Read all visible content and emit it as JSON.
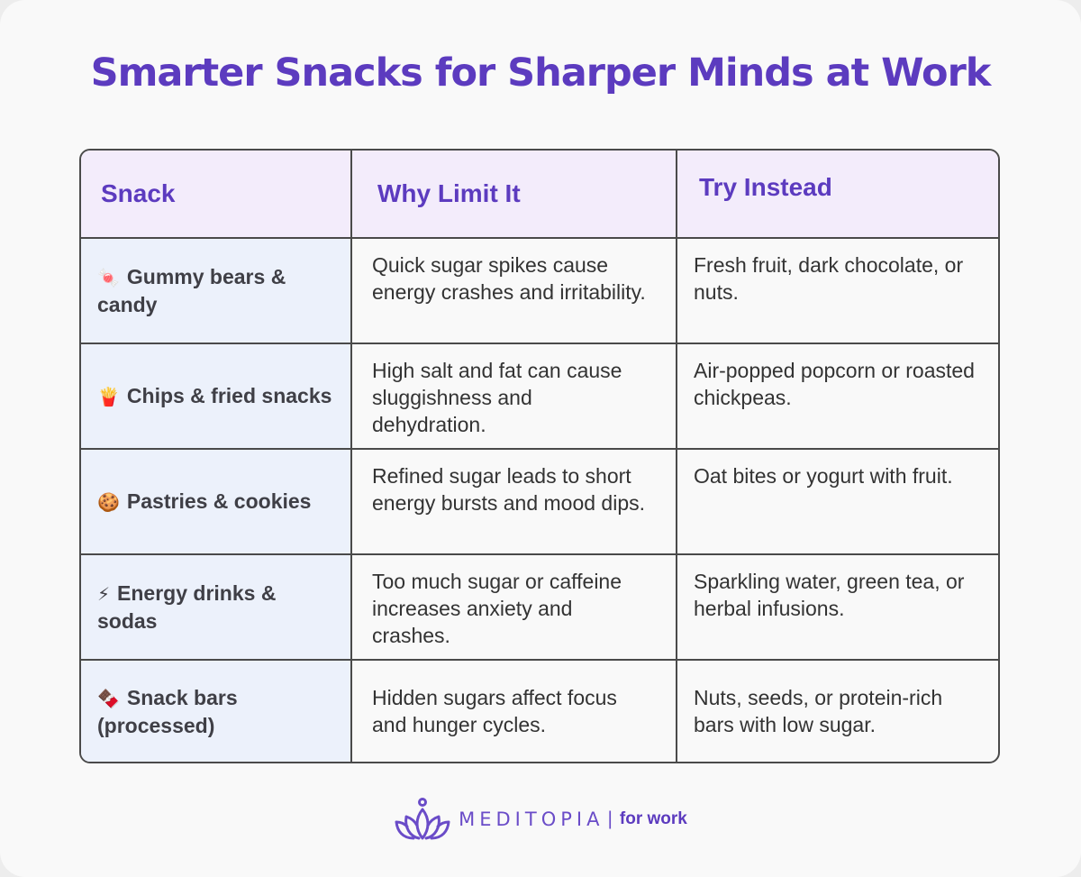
{
  "title": "Smarter Snacks for Sharper Minds at Work",
  "table": {
    "headers": [
      "Snack",
      "Why Limit It",
      "Try Instead"
    ],
    "rows": [
      {
        "icon": "candy-icon",
        "glyph": "🍬",
        "snack": "Gummy bears & candy",
        "why": "Quick sugar spikes cause energy crashes and irritability.",
        "try": "Fresh fruit, dark chocolate, or nuts."
      },
      {
        "icon": "fries-icon",
        "glyph": "🍟",
        "snack": "Chips & fried snacks",
        "why": "High salt and fat can cause sluggishness and dehydration.",
        "try": "Air-popped popcorn or roasted chickpeas."
      },
      {
        "icon": "cookie-icon",
        "glyph": "🍪",
        "snack": "Pastries & cookies",
        "why": "Refined sugar leads to short energy bursts and mood dips.",
        "try": "Oat bites or yogurt with fruit."
      },
      {
        "icon": "lightning-icon",
        "glyph": "⚡",
        "snack": "Energy drinks & sodas",
        "why": "Too much sugar or caffeine increases anxiety and crashes.",
        "try": "Sparkling water, green tea, or herbal infusions."
      },
      {
        "icon": "chocolate-bar-icon",
        "glyph": "🍫",
        "snack": "Snack bars (processed)",
        "why": "Hidden sugars affect focus and hunger cycles.",
        "try": "Nuts, seeds, or protein-rich bars with low sugar."
      }
    ]
  },
  "footer": {
    "brand": "MEDITOPIA",
    "separator": "|",
    "subtitle": "for work",
    "logo_icon": "lotus-icon"
  },
  "colors": {
    "accent": "#5c3bbf",
    "header_bg": "#f3ecfb",
    "snack_col_bg": "#ecf1fb",
    "border": "#4a4a4a",
    "text": "#333333"
  }
}
